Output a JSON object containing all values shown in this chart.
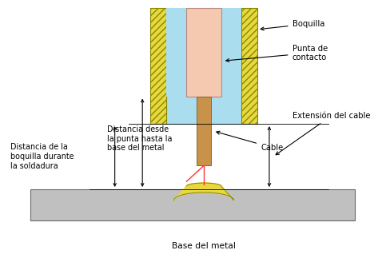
{
  "bg_color": "#ffffff",
  "nozzle_outer_color": "#e8d840",
  "nozzle_inner_color": "#aaddee",
  "contact_tip_color": "#f5c8b0",
  "cable_color": "#c8924a",
  "base_metal_color": "#c0c0c0",
  "weld_pool_color": "#e8d840",
  "arc_color": "#ff3333",
  "hatch_color": "#b8a000",
  "labels": {
    "boquilla": "Boquilla",
    "punta": "Punta de\ncontacto",
    "extension": "Extensión del cable",
    "cable": "Cable",
    "distancia_boquilla": "Distancia de la\nboquilla durante\nla soldadura",
    "distancia_punta": "Distancia desde\nla punta hasta la\nbase del metal",
    "base": "Base del metal"
  },
  "fig_width": 4.88,
  "fig_height": 3.28,
  "dpi": 100
}
